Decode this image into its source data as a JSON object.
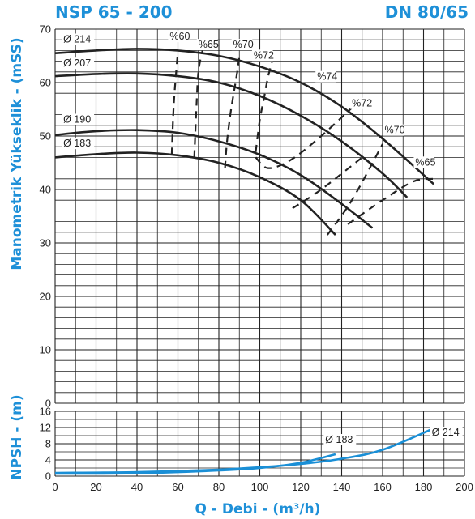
{
  "chart_data": {
    "type": "line",
    "title_left": "NSP 65 - 200",
    "title_right": "DN 80/65",
    "xlabel": "Q - Debi - (m³/h)",
    "ylabel_head": "Manometrik Yükseklik - (mSS)",
    "ylabel_npsh": "NPSH - (m)",
    "xlim": [
      0,
      200
    ],
    "x_ticks": [
      "0",
      "20",
      "40",
      "60",
      "80",
      "100",
      "120",
      "140",
      "160",
      "180",
      "200"
    ],
    "head_ylim": [
      0,
      70
    ],
    "head_ticks": [
      "0",
      "10",
      "20",
      "30",
      "40",
      "50",
      "60",
      "70"
    ],
    "npsh_ylim": [
      0,
      16
    ],
    "npsh_ticks": [
      "0",
      "4",
      "8",
      "12",
      "16"
    ],
    "grid": true,
    "head_curves": [
      {
        "name": "Ø 214",
        "x": [
          0,
          20,
          40,
          60,
          80,
          100,
          120,
          140,
          160,
          185
        ],
        "y": [
          65.5,
          66.0,
          66.3,
          66.0,
          65.0,
          63.0,
          60.0,
          55.5,
          49.5,
          41.0
        ]
      },
      {
        "name": "Ø 207",
        "x": [
          0,
          20,
          40,
          60,
          80,
          100,
          120,
          140,
          160,
          172
        ],
        "y": [
          61.2,
          61.6,
          61.7,
          61.2,
          60.0,
          57.5,
          53.8,
          49.0,
          43.0,
          38.5
        ]
      },
      {
        "name": "Ø 190",
        "x": [
          0,
          20,
          40,
          60,
          80,
          100,
          120,
          140,
          155
        ],
        "y": [
          50.2,
          50.9,
          51.1,
          50.6,
          49.0,
          46.5,
          42.7,
          37.3,
          32.8
        ]
      },
      {
        "name": "Ø 183",
        "x": [
          0,
          20,
          40,
          60,
          80,
          100,
          120,
          137
        ],
        "y": [
          46.0,
          46.6,
          46.9,
          46.4,
          45.0,
          42.3,
          38.0,
          31.5
        ]
      }
    ],
    "efficiency_curves": [
      {
        "name": "%60",
        "x": [
          57,
          58,
          60
        ],
        "y": [
          46.5,
          56.0,
          66.0
        ]
      },
      {
        "name": "%65",
        "x": [
          68,
          69,
          70,
          72
        ],
        "y": [
          46.0,
          55.0,
          62.0,
          66.0
        ]
      },
      {
        "name": "%70",
        "x": [
          83,
          84,
          86,
          89,
          90
        ],
        "y": [
          44.0,
          49.0,
          55.0,
          62.0,
          65.0
        ]
      },
      {
        "name": "%70",
        "x": [
          133,
          145,
          160
        ],
        "y": [
          31.5,
          38.0,
          48.5
        ]
      },
      {
        "name": "%72",
        "x": [
          98,
          100,
          102,
          104,
          106
        ],
        "y": [
          47.0,
          53.0,
          57.0,
          61.0,
          64.0
        ]
      },
      {
        "name": "%72",
        "x": [
          98,
          104,
          115,
          130,
          147
        ],
        "y": [
          46.0,
          44.0,
          45.5,
          50.0,
          56.0
        ]
      },
      {
        "name": "%72",
        "x": [
          116,
          130,
          150
        ],
        "y": [
          36.5,
          40.0,
          46.0
        ]
      },
      {
        "name": "%65",
        "x": [
          143,
          160,
          175,
          185
        ],
        "y": [
          33.5,
          38.0,
          41.5,
          42.0
        ]
      }
    ],
    "head_labels": [
      {
        "text": "Ø 214",
        "x": 4,
        "y": 67.5
      },
      {
        "text": "Ø 207",
        "x": 4,
        "y": 63.0
      },
      {
        "text": "Ø 190",
        "x": 4,
        "y": 52.5
      },
      {
        "text": "Ø 183",
        "x": 4,
        "y": 48.0
      }
    ],
    "efficiency_labels": [
      {
        "text": "%60",
        "x": 56,
        "y": 68.0
      },
      {
        "text": "%65",
        "x": 70,
        "y": 66.5
      },
      {
        "text": "%70",
        "x": 87,
        "y": 66.5
      },
      {
        "text": "%72",
        "x": 97,
        "y": 64.5
      },
      {
        "text": "%74",
        "x": 128,
        "y": 60.5
      },
      {
        "text": "%72",
        "x": 145,
        "y": 55.5
      },
      {
        "text": "%70",
        "x": 161,
        "y": 50.5
      },
      {
        "text": "%65",
        "x": 176,
        "y": 44.5
      }
    ],
    "npsh_curves": [
      {
        "name": "Ø 183",
        "x": [
          0,
          40,
          80,
          100,
          120,
          137
        ],
        "y": [
          0.6,
          0.7,
          1.4,
          2.0,
          3.3,
          5.4
        ]
      },
      {
        "name": "Ø 214",
        "x": [
          0,
          40,
          80,
          100,
          120,
          140,
          160,
          185
        ],
        "y": [
          0.8,
          1.0,
          1.6,
          2.2,
          3.0,
          4.3,
          6.5,
          11.8
        ]
      }
    ],
    "npsh_labels": [
      {
        "text": "Ø 183",
        "x": 132,
        "y": 8.2
      },
      {
        "text": "Ø 214",
        "x": 184,
        "y": 10.0
      }
    ],
    "colors": {
      "title": "#1e90d8",
      "npsh_curve": "#1a8fd6",
      "grid": "#222222",
      "curve": "#222222"
    }
  }
}
